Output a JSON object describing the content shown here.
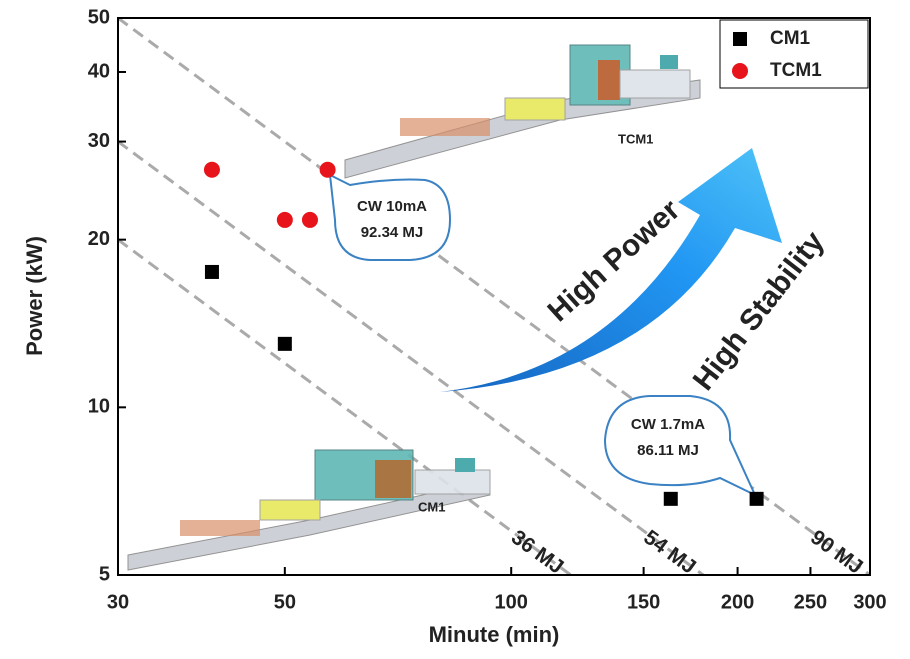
{
  "chart_data": {
    "type": "scatter",
    "xlabel": "Minute (min)",
    "ylabel": "Power (kW)",
    "xscale": "log",
    "yscale": "log",
    "xlim": [
      30,
      300
    ],
    "ylim": [
      5,
      50
    ],
    "xticks": [
      30,
      50,
      100,
      150,
      200,
      250,
      300
    ],
    "yticks": [
      5,
      10,
      20,
      30,
      40,
      50
    ],
    "legend": "upper right",
    "series": [
      {
        "name": "CM1",
        "color": "#000000",
        "marker": "square",
        "x": [
          40,
          50,
          163,
          212
        ],
        "values": [
          17.5,
          13,
          6.85,
          6.85
        ]
      },
      {
        "name": "TCM1",
        "color": "#e8141b",
        "marker": "circle",
        "x": [
          40,
          50,
          54,
          57
        ],
        "values": [
          26.7,
          21.7,
          21.7,
          26.7
        ]
      }
    ],
    "reference_lines": [
      {
        "label": "36 MJ",
        "value": 36
      },
      {
        "label": "54 MJ",
        "value": 54
      },
      {
        "label": "90 MJ",
        "value": 90
      }
    ],
    "annotations": [
      {
        "lines": [
          "CW 10mA",
          "92.34 MJ"
        ]
      },
      {
        "lines": [
          "CW 1.7mA",
          "86.11 MJ"
        ]
      }
    ],
    "arrow_labels": [
      "High Power",
      "High Stability"
    ],
    "image_labels": [
      "TCM1",
      "CM1"
    ]
  }
}
